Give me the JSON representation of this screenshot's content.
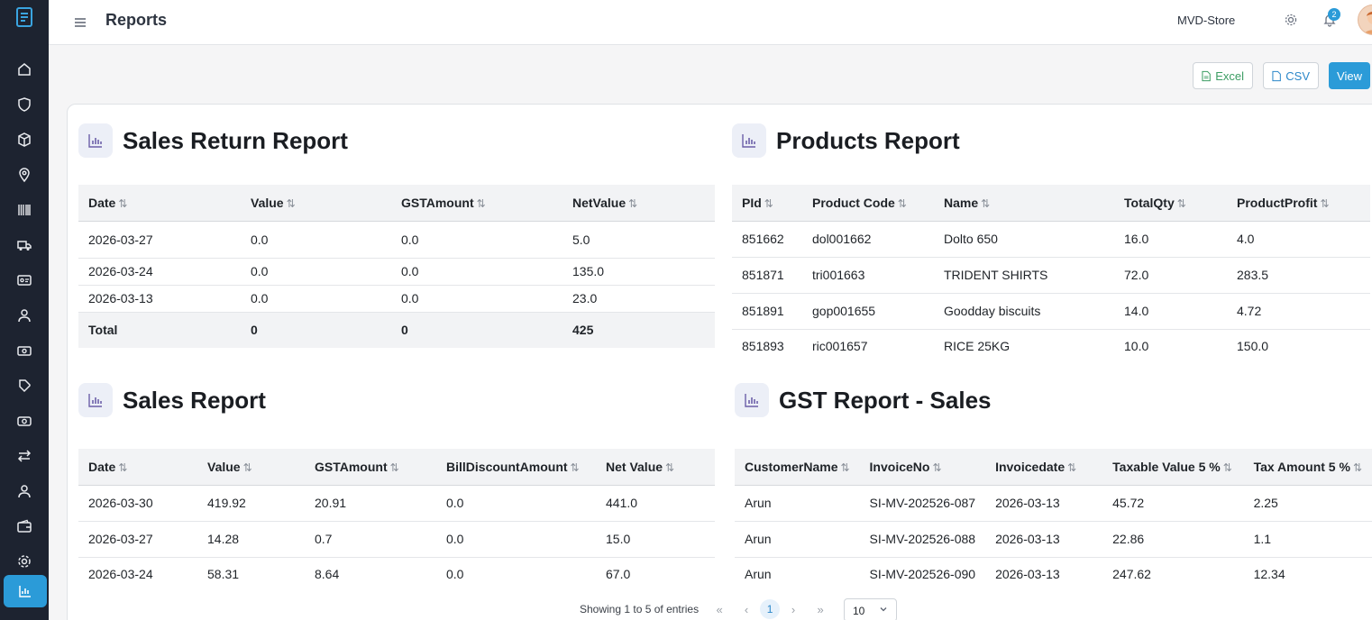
{
  "topbar": {
    "title": "Reports",
    "store": "MVD-Store",
    "notification_count": "2"
  },
  "sidebar": {
    "items": [
      "home-icon",
      "shield-icon",
      "box-icon",
      "location-icon",
      "barcode-icon",
      "truck-icon",
      "id-card-icon",
      "user-icon",
      "cash-icon",
      "tag-icon",
      "money-icon",
      "transfer-icon",
      "person-icon",
      "wallet-icon",
      "settings-icon",
      "reports-icon"
    ],
    "active": "reports-icon"
  },
  "actions": {
    "excel": "Excel",
    "csv": "CSV",
    "view": "View"
  },
  "sales_return": {
    "title": "Sales Return Report",
    "headers": [
      "Date",
      "Value",
      "GSTAmount",
      "NetValue"
    ],
    "rows": [
      [
        "2026-03-27",
        "0.0",
        "0.0",
        "5.0"
      ],
      [
        "2026-03-24",
        "0.0",
        "0.0",
        "135.0"
      ],
      [
        "2026-03-13",
        "0.0",
        "0.0",
        "23.0"
      ]
    ],
    "total": [
      "Total",
      "0",
      "0",
      "425"
    ]
  },
  "products": {
    "title": "Products Report",
    "headers": [
      "PId",
      "Product Code",
      "Name",
      "TotalQty",
      "ProductProfit"
    ],
    "rows": [
      [
        "851662",
        "dol001662",
        "Dolto 650",
        "16.0",
        "4.0"
      ],
      [
        "851871",
        "tri001663",
        "TRIDENT SHIRTS",
        "72.0",
        "283.5"
      ],
      [
        "851891",
        "gop001655",
        "Goodday biscuits",
        "14.0",
        "4.72"
      ],
      [
        "851893",
        "ric001657",
        "RICE 25KG",
        "10.0",
        "150.0"
      ]
    ]
  },
  "sales": {
    "title": "Sales Report",
    "headers": [
      "Date",
      "Value",
      "GSTAmount",
      "BillDiscountAmount",
      "Net Value"
    ],
    "rows": [
      [
        "2026-03-30",
        "419.92",
        "20.91",
        "0.0",
        "441.0"
      ],
      [
        "2026-03-27",
        "14.28",
        "0.7",
        "0.0",
        "15.0"
      ],
      [
        "2026-03-24",
        "58.31",
        "8.64",
        "0.0",
        "67.0"
      ]
    ]
  },
  "gst": {
    "title": "GST Report - Sales",
    "headers": [
      "CustomerName",
      "InvoiceNo",
      "Invoicedate",
      "Taxable Value 5 %",
      "Tax Amount 5 %"
    ],
    "rows": [
      [
        "Arun",
        "SI-MV-202526-087",
        "2026-03-13",
        "45.72",
        "2.25"
      ],
      [
        "Arun",
        "SI-MV-202526-088",
        "2026-03-13",
        "22.86",
        "1.1"
      ],
      [
        "Arun",
        "SI-MV-202526-090",
        "2026-03-13",
        "247.62",
        "12.34"
      ]
    ]
  },
  "pagination": {
    "info": "Showing 1 to 5 of entries",
    "current_page": "1",
    "page_size": "10"
  },
  "colors": {
    "sidebar": "#1d2330",
    "accent": "#2b9bd8",
    "excel": "#3c9d63"
  }
}
